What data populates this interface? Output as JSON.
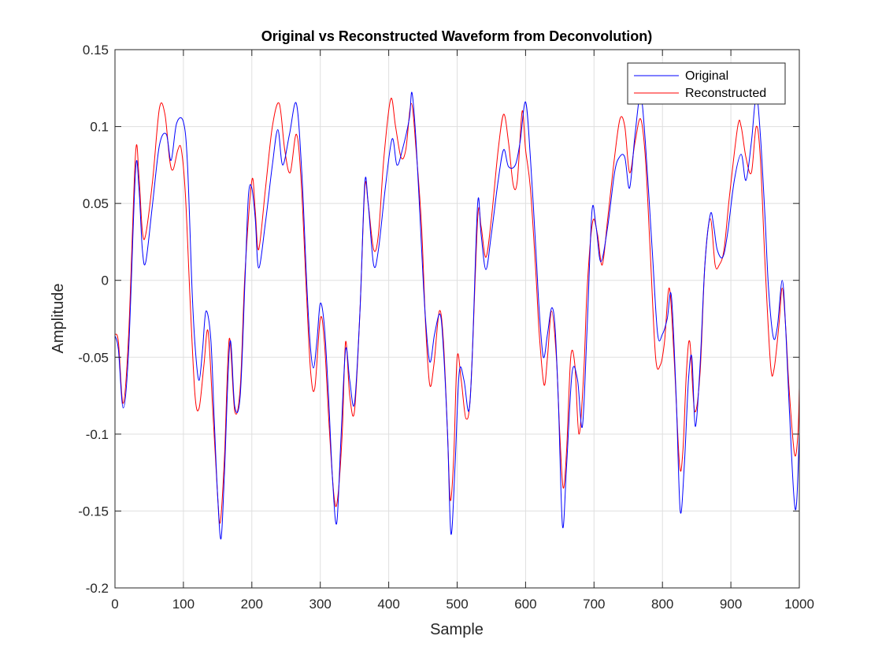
{
  "chart_data": {
    "type": "line",
    "title": "Original vs Reconstructed Waveform from Deconvolution)",
    "xlabel": "Sample",
    "ylabel": "Amplitude",
    "xlim": [
      0,
      1000
    ],
    "ylim": [
      -0.2,
      0.15
    ],
    "x_ticks": [
      0,
      100,
      200,
      300,
      400,
      500,
      600,
      700,
      800,
      900,
      1000
    ],
    "y_ticks": [
      -0.2,
      -0.15,
      -0.1,
      -0.05,
      0,
      0.05,
      0.1,
      0.15
    ],
    "x_tick_labels": [
      "0",
      "100",
      "200",
      "300",
      "400",
      "500",
      "600",
      "700",
      "800",
      "900",
      "1000"
    ],
    "y_tick_labels": [
      "-0.2",
      "-0.15",
      "-0.1",
      "-0.05",
      "0",
      "0.05",
      "0.1",
      "0.15"
    ],
    "grid": true,
    "legend_position": "top-right",
    "series": [
      {
        "name": "Original",
        "color": "#0000ff",
        "points": [
          [
            0,
            -0.036
          ],
          [
            5,
            -0.045
          ],
          [
            12,
            -0.083
          ],
          [
            20,
            -0.045
          ],
          [
            30,
            0.071
          ],
          [
            35,
            0.06
          ],
          [
            40,
            0.02
          ],
          [
            45,
            0.012
          ],
          [
            55,
            0.05
          ],
          [
            65,
            0.088
          ],
          [
            75,
            0.095
          ],
          [
            82,
            0.078
          ],
          [
            90,
            0.102
          ],
          [
            100,
            0.103
          ],
          [
            106,
            0.075
          ],
          [
            113,
            -0.01
          ],
          [
            118,
            -0.048
          ],
          [
            123,
            -0.065
          ],
          [
            128,
            -0.045
          ],
          [
            133,
            -0.02
          ],
          [
            140,
            -0.038
          ],
          [
            145,
            -0.09
          ],
          [
            150,
            -0.14
          ],
          [
            155,
            -0.168
          ],
          [
            160,
            -0.125
          ],
          [
            168,
            -0.04
          ],
          [
            175,
            -0.082
          ],
          [
            183,
            -0.075
          ],
          [
            190,
            0.0
          ],
          [
            195,
            0.055
          ],
          [
            200,
            0.06
          ],
          [
            205,
            0.04
          ],
          [
            210,
            0.008
          ],
          [
            220,
            0.038
          ],
          [
            230,
            0.075
          ],
          [
            238,
            0.098
          ],
          [
            245,
            0.075
          ],
          [
            255,
            0.095
          ],
          [
            265,
            0.115
          ],
          [
            273,
            0.07
          ],
          [
            280,
            0.0
          ],
          [
            285,
            -0.04
          ],
          [
            290,
            -0.057
          ],
          [
            295,
            -0.04
          ],
          [
            300,
            -0.015
          ],
          [
            306,
            -0.03
          ],
          [
            312,
            -0.075
          ],
          [
            318,
            -0.13
          ],
          [
            324,
            -0.158
          ],
          [
            330,
            -0.105
          ],
          [
            337,
            -0.045
          ],
          [
            343,
            -0.065
          ],
          [
            350,
            -0.08
          ],
          [
            358,
            -0.02
          ],
          [
            365,
            0.063
          ],
          [
            370,
            0.05
          ],
          [
            378,
            0.01
          ],
          [
            385,
            0.02
          ],
          [
            395,
            0.06
          ],
          [
            405,
            0.092
          ],
          [
            412,
            0.075
          ],
          [
            420,
            0.085
          ],
          [
            430,
            0.105
          ],
          [
            434,
            0.122
          ],
          [
            440,
            0.09
          ],
          [
            447,
            0.03
          ],
          [
            453,
            -0.02
          ],
          [
            460,
            -0.053
          ],
          [
            467,
            -0.035
          ],
          [
            475,
            -0.022
          ],
          [
            480,
            -0.045
          ],
          [
            486,
            -0.1
          ],
          [
            491,
            -0.165
          ],
          [
            497,
            -0.12
          ],
          [
            503,
            -0.06
          ],
          [
            510,
            -0.065
          ],
          [
            517,
            -0.085
          ],
          [
            522,
            -0.05
          ],
          [
            530,
            0.05
          ],
          [
            535,
            0.03
          ],
          [
            542,
            0.007
          ],
          [
            550,
            0.03
          ],
          [
            560,
            0.065
          ],
          [
            568,
            0.085
          ],
          [
            575,
            0.074
          ],
          [
            585,
            0.075
          ],
          [
            592,
            0.09
          ],
          [
            600,
            0.116
          ],
          [
            607,
            0.08
          ],
          [
            615,
            0.02
          ],
          [
            620,
            -0.02
          ],
          [
            626,
            -0.05
          ],
          [
            632,
            -0.035
          ],
          [
            638,
            -0.018
          ],
          [
            643,
            -0.03
          ],
          [
            648,
            -0.08
          ],
          [
            654,
            -0.16
          ],
          [
            660,
            -0.12
          ],
          [
            668,
            -0.06
          ],
          [
            676,
            -0.065
          ],
          [
            683,
            -0.095
          ],
          [
            690,
            -0.03
          ],
          [
            697,
            0.045
          ],
          [
            703,
            0.035
          ],
          [
            710,
            0.012
          ],
          [
            720,
            0.035
          ],
          [
            730,
            0.07
          ],
          [
            737,
            0.08
          ],
          [
            745,
            0.08
          ],
          [
            752,
            0.06
          ],
          [
            760,
            0.095
          ],
          [
            768,
            0.12
          ],
          [
            775,
            0.09
          ],
          [
            785,
            0.02
          ],
          [
            793,
            -0.035
          ],
          [
            800,
            -0.035
          ],
          [
            807,
            -0.025
          ],
          [
            813,
            -0.01
          ],
          [
            820,
            -0.075
          ],
          [
            826,
            -0.15
          ],
          [
            832,
            -0.12
          ],
          [
            838,
            -0.065
          ],
          [
            843,
            -0.05
          ],
          [
            848,
            -0.095
          ],
          [
            855,
            -0.055
          ],
          [
            862,
            0.01
          ],
          [
            870,
            0.043
          ],
          [
            875,
            0.035
          ],
          [
            880,
            0.02
          ],
          [
            888,
            0.015
          ],
          [
            895,
            0.03
          ],
          [
            905,
            0.065
          ],
          [
            915,
            0.082
          ],
          [
            922,
            0.065
          ],
          [
            930,
            0.09
          ],
          [
            937,
            0.12
          ],
          [
            943,
            0.095
          ],
          [
            950,
            0.04
          ],
          [
            955,
            -0.005
          ],
          [
            962,
            -0.037
          ],
          [
            968,
            -0.03
          ],
          [
            975,
            0.0
          ],
          [
            980,
            -0.03
          ],
          [
            985,
            -0.08
          ],
          [
            992,
            -0.14
          ],
          [
            996,
            -0.145
          ],
          [
            1000,
            -0.1
          ]
        ]
      },
      {
        "name": "Reconstructed",
        "color": "#ff0000",
        "points": [
          [
            0,
            -0.035
          ],
          [
            5,
            -0.04
          ],
          [
            12,
            -0.08
          ],
          [
            20,
            -0.035
          ],
          [
            30,
            0.082
          ],
          [
            35,
            0.068
          ],
          [
            40,
            0.032
          ],
          [
            45,
            0.03
          ],
          [
            55,
            0.065
          ],
          [
            65,
            0.112
          ],
          [
            73,
            0.108
          ],
          [
            80,
            0.078
          ],
          [
            85,
            0.072
          ],
          [
            92,
            0.085
          ],
          [
            97,
            0.085
          ],
          [
            103,
            0.055
          ],
          [
            110,
            -0.015
          ],
          [
            117,
            -0.075
          ],
          [
            123,
            -0.083
          ],
          [
            130,
            -0.055
          ],
          [
            136,
            -0.033
          ],
          [
            143,
            -0.085
          ],
          [
            150,
            -0.14
          ],
          [
            154,
            -0.157
          ],
          [
            160,
            -0.115
          ],
          [
            167,
            -0.038
          ],
          [
            175,
            -0.085
          ],
          [
            183,
            -0.07
          ],
          [
            190,
            0.005
          ],
          [
            200,
            0.065
          ],
          [
            205,
            0.045
          ],
          [
            210,
            0.02
          ],
          [
            220,
            0.06
          ],
          [
            230,
            0.1
          ],
          [
            240,
            0.115
          ],
          [
            248,
            0.085
          ],
          [
            256,
            0.07
          ],
          [
            265,
            0.095
          ],
          [
            272,
            0.065
          ],
          [
            280,
            -0.01
          ],
          [
            286,
            -0.06
          ],
          [
            292,
            -0.07
          ],
          [
            300,
            -0.025
          ],
          [
            306,
            -0.04
          ],
          [
            313,
            -0.095
          ],
          [
            320,
            -0.14
          ],
          [
            325,
            -0.143
          ],
          [
            332,
            -0.1
          ],
          [
            337,
            -0.04
          ],
          [
            343,
            -0.075
          ],
          [
            350,
            -0.085
          ],
          [
            358,
            -0.02
          ],
          [
            365,
            0.06
          ],
          [
            370,
            0.05
          ],
          [
            378,
            0.02
          ],
          [
            385,
            0.03
          ],
          [
            393,
            0.08
          ],
          [
            403,
            0.118
          ],
          [
            410,
            0.1
          ],
          [
            418,
            0.08
          ],
          [
            425,
            0.085
          ],
          [
            433,
            0.115
          ],
          [
            440,
            0.085
          ],
          [
            448,
            0.035
          ],
          [
            454,
            -0.03
          ],
          [
            460,
            -0.068
          ],
          [
            466,
            -0.055
          ],
          [
            474,
            -0.02
          ],
          [
            480,
            -0.04
          ],
          [
            486,
            -0.1
          ],
          [
            490,
            -0.143
          ],
          [
            495,
            -0.115
          ],
          [
            500,
            -0.05
          ],
          [
            506,
            -0.065
          ],
          [
            513,
            -0.09
          ],
          [
            520,
            -0.07
          ],
          [
            530,
            0.04
          ],
          [
            535,
            0.035
          ],
          [
            542,
            0.015
          ],
          [
            550,
            0.04
          ],
          [
            560,
            0.085
          ],
          [
            568,
            0.108
          ],
          [
            575,
            0.09
          ],
          [
            582,
            0.062
          ],
          [
            588,
            0.065
          ],
          [
            595,
            0.11
          ],
          [
            600,
            0.085
          ],
          [
            607,
            0.06
          ],
          [
            615,
            0.005
          ],
          [
            620,
            -0.035
          ],
          [
            627,
            -0.068
          ],
          [
            632,
            -0.05
          ],
          [
            638,
            -0.02
          ],
          [
            645,
            -0.05
          ],
          [
            650,
            -0.1
          ],
          [
            655,
            -0.135
          ],
          [
            660,
            -0.11
          ],
          [
            666,
            -0.05
          ],
          [
            672,
            -0.055
          ],
          [
            678,
            -0.1
          ],
          [
            685,
            -0.06
          ],
          [
            690,
            -0.005
          ],
          [
            698,
            0.038
          ],
          [
            705,
            0.03
          ],
          [
            712,
            0.01
          ],
          [
            720,
            0.04
          ],
          [
            730,
            0.08
          ],
          [
            738,
            0.105
          ],
          [
            745,
            0.1
          ],
          [
            752,
            0.07
          ],
          [
            760,
            0.09
          ],
          [
            768,
            0.105
          ],
          [
            775,
            0.08
          ],
          [
            782,
            0.02
          ],
          [
            790,
            -0.05
          ],
          [
            797,
            -0.055
          ],
          [
            803,
            -0.04
          ],
          [
            810,
            -0.005
          ],
          [
            817,
            -0.05
          ],
          [
            825,
            -0.12
          ],
          [
            830,
            -0.11
          ],
          [
            835,
            -0.06
          ],
          [
            840,
            -0.04
          ],
          [
            847,
            -0.085
          ],
          [
            855,
            -0.06
          ],
          [
            862,
            0.01
          ],
          [
            870,
            0.04
          ],
          [
            877,
            0.01
          ],
          [
            883,
            0.01
          ],
          [
            890,
            0.02
          ],
          [
            898,
            0.055
          ],
          [
            910,
            0.1
          ],
          [
            915,
            0.1
          ],
          [
            922,
            0.08
          ],
          [
            930,
            0.07
          ],
          [
            937,
            0.1
          ],
          [
            943,
            0.08
          ],
          [
            950,
            0.01
          ],
          [
            958,
            -0.055
          ],
          [
            963,
            -0.058
          ],
          [
            970,
            -0.03
          ],
          [
            975,
            -0.005
          ],
          [
            980,
            -0.03
          ],
          [
            985,
            -0.07
          ],
          [
            993,
            -0.113
          ],
          [
            998,
            -0.1
          ],
          [
            1000,
            -0.07
          ]
        ]
      }
    ]
  }
}
